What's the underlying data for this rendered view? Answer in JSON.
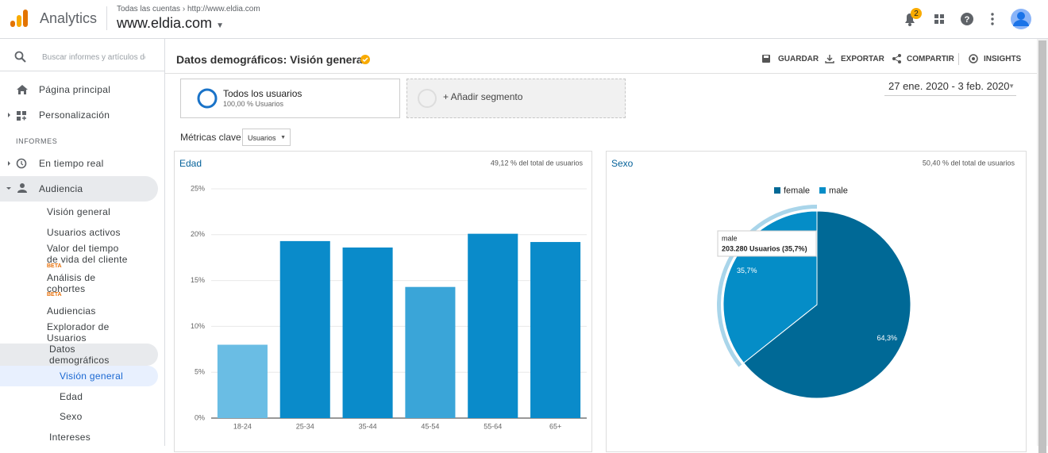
{
  "header": {
    "product": "Analytics",
    "breadcrumb": [
      "Todas las cuentas",
      "http://www.eldia.com"
    ],
    "property": "www.eldia.com",
    "notification_count": 2
  },
  "sidebar": {
    "search_placeholder": "Buscar informes y artículos de",
    "items": [
      "Página principal",
      "Personalización"
    ],
    "section": "INFORMES",
    "reports": [
      "En tiempo real",
      "Audiencia"
    ],
    "audience": [
      {
        "label": "Visión general"
      },
      {
        "label": "Usuarios activos"
      },
      {
        "label": "Valor del tiempo de vida del cliente",
        "badge": "BETA"
      },
      {
        "label": "Análisis de cohortes",
        "badge": "BETA"
      },
      {
        "label": "Audiencias"
      },
      {
        "label": "Explorador de Usuarios"
      },
      {
        "label": "Datos demográficos"
      }
    ],
    "demographics": [
      "Visión general",
      "Edad",
      "Sexo"
    ],
    "next": "Intereses"
  },
  "toolbar": {
    "title": "Datos demográficos: Visión general",
    "actions": [
      "GUARDAR",
      "EXPORTAR",
      "COMPARTIR",
      "INSIGHTS"
    ]
  },
  "segments": {
    "name": "Todos los usuarios",
    "detail": "100,00 % Usuarios",
    "add": "+ Añadir segmento"
  },
  "date_range": "27 ene. 2020 - 3 feb. 2020",
  "metrics": {
    "label": "Métricas clave",
    "selected": "Usuarios"
  },
  "chart_data": [
    {
      "type": "bar",
      "title": "Edad",
      "annotation": "49,12 % del total de usuarios",
      "categories": [
        "18-24",
        "25-34",
        "35-44",
        "45-54",
        "55-64",
        "65+"
      ],
      "values": [
        8.0,
        19.3,
        18.6,
        14.3,
        20.1,
        19.2
      ],
      "colors": [
        "#6abde4",
        "#0a8bca",
        "#0a8bca",
        "#3aa5d8",
        "#0a8bca",
        "#0a8bca"
      ],
      "ylim": [
        0,
        25
      ],
      "yticks": [
        {
          "value": 0,
          "label": "0%"
        },
        {
          "value": 5,
          "label": "5%"
        },
        {
          "value": 10,
          "label": "10%"
        },
        {
          "value": 15,
          "label": "15%"
        },
        {
          "value": 20,
          "label": "20%"
        },
        {
          "value": 25,
          "label": "25%"
        }
      ],
      "grid": true
    },
    {
      "type": "pie",
      "title": "Sexo",
      "annotation": "50,40 % del total de usuarios",
      "categories": [
        "female",
        "male"
      ],
      "values": [
        64.3,
        35.7
      ],
      "value_labels": [
        "64,3%",
        "35,7%"
      ],
      "colors": [
        "#006996",
        "#058dc7"
      ],
      "tooltip": {
        "title": "male",
        "text": "203.280 Usuarios (35,7%)"
      }
    }
  ]
}
